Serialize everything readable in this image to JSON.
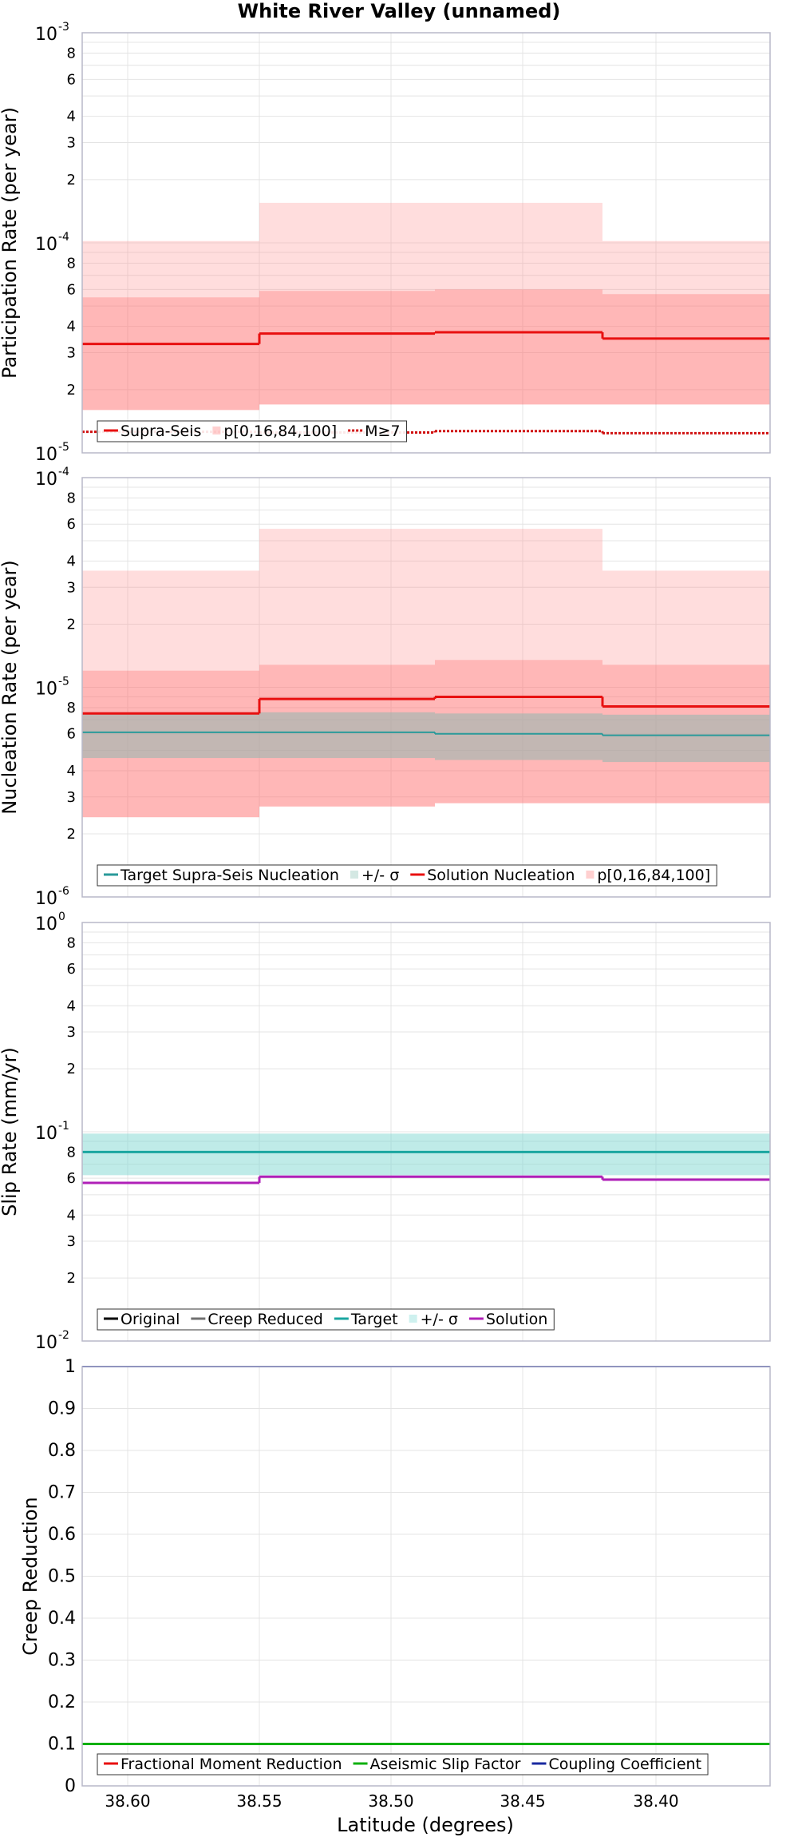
{
  "title": "White River Valley (unnamed)",
  "xlabel": "Latitude (degrees)",
  "x_ticks": [
    "38.60",
    "38.55",
    "38.50",
    "38.45",
    "38.40"
  ],
  "chart_data": [
    {
      "type": "line",
      "panel": "participation",
      "ylabel": "Participation Rate (per year)",
      "yscale": "log",
      "ylim": [
        1e-05,
        0.001
      ],
      "x_bins": [
        [
          38.6,
          38.55
        ],
        [
          38.55,
          38.52
        ],
        [
          38.52,
          38.45
        ],
        [
          38.45,
          38.4
        ]
      ],
      "series": [
        {
          "name": "Supra-Seis",
          "values": [
            3.3e-05,
            3.7e-05,
            3.75e-05,
            3.5e-05
          ],
          "color": "#e81010"
        },
        {
          "name": "p[0,16,84,100]",
          "p0": [
            1.6e-05,
            1.7e-05,
            1.7e-05,
            1.7e-05
          ],
          "p16": [
            1.6e-05,
            1.7e-05,
            1.7e-05,
            1.7e-05
          ],
          "p84": [
            5.5e-05,
            5.9e-05,
            6e-05,
            5.7e-05
          ],
          "p100": [
            0.000102,
            0.000155,
            0.000155,
            0.000102
          ],
          "color": "#ffb0b0"
        },
        {
          "name": "M≥7",
          "values": [
            1.26e-05,
            1.25e-05,
            1.27e-05,
            1.24e-05
          ],
          "color": "#d01010"
        }
      ]
    },
    {
      "type": "line",
      "panel": "nucleation",
      "ylabel": "Nucleation Rate (per year)",
      "yscale": "log",
      "ylim": [
        1e-06,
        0.0001
      ],
      "x_bins": [
        [
          38.6,
          38.55
        ],
        [
          38.55,
          38.52
        ],
        [
          38.52,
          38.45
        ],
        [
          38.45,
          38.4
        ]
      ],
      "series": [
        {
          "name": "Target Supra-Seis Nucleation",
          "values": [
            6.1e-06,
            6.1e-06,
            6e-06,
            5.9e-06
          ],
          "color": "#2a9a9a"
        },
        {
          "name": "+/- σ",
          "lower": [
            4.6e-06,
            4.6e-06,
            4.5e-06,
            4.4e-06
          ],
          "upper": [
            7.6e-06,
            7.6e-06,
            7.5e-06,
            7.4e-06
          ],
          "color": "#b8d8d0"
        },
        {
          "name": "Solution Nucleation",
          "values": [
            7.5e-06,
            8.8e-06,
            9e-06,
            8.1e-06
          ],
          "color": "#e81010"
        },
        {
          "name": "p[0,16,84,100]",
          "p0": [
            2.4e-06,
            2.7e-06,
            2.8e-06,
            2.8e-06
          ],
          "p16": [
            2.4e-06,
            2.7e-06,
            2.8e-06,
            2.8e-06
          ],
          "p84": [
            1.2e-05,
            1.28e-05,
            1.35e-05,
            1.28e-05
          ],
          "p100": [
            3.6e-05,
            5.7e-05,
            5.7e-05,
            3.6e-05
          ],
          "color": "#ffb0b0"
        }
      ]
    },
    {
      "type": "line",
      "panel": "slip",
      "ylabel": "Slip Rate (mm/yr)",
      "yscale": "log",
      "ylim": [
        0.01,
        1
      ],
      "x_bins": [
        [
          38.6,
          38.55
        ],
        [
          38.55,
          38.52
        ],
        [
          38.52,
          38.45
        ],
        [
          38.45,
          38.4
        ]
      ],
      "series": [
        {
          "name": "Original",
          "values": [],
          "color": "#000000"
        },
        {
          "name": "Creep Reduced",
          "values": [],
          "color": "#707070"
        },
        {
          "name": "Target",
          "values": [
            0.08,
            0.08,
            0.08,
            0.08
          ],
          "color": "#1aa6a0"
        },
        {
          "name": "+/- σ",
          "lower": [
            0.062,
            0.062,
            0.062,
            0.062
          ],
          "upper": [
            0.098,
            0.098,
            0.098,
            0.098
          ],
          "color": "#aee8e4"
        },
        {
          "name": "Solution",
          "values": [
            0.057,
            0.061,
            0.061,
            0.059
          ],
          "color": "#b020b8"
        }
      ]
    },
    {
      "type": "line",
      "panel": "creep",
      "ylabel": "Creep Reduction",
      "yscale": "linear",
      "ylim": [
        0,
        1
      ],
      "y_ticks": [
        "0",
        "0.1",
        "0.2",
        "0.3",
        "0.4",
        "0.5",
        "0.6",
        "0.7",
        "0.8",
        "0.9",
        "1"
      ],
      "x_bins": [
        [
          38.6,
          38.55
        ],
        [
          38.55,
          38.52
        ],
        [
          38.52,
          38.45
        ],
        [
          38.45,
          38.4
        ]
      ],
      "series": [
        {
          "name": "Fractional Moment Reduction",
          "values": [
            0,
            0,
            0,
            0
          ],
          "color": "#e81010"
        },
        {
          "name": "Aseismic Slip Factor",
          "values": [
            0.1,
            0.1,
            0.1,
            0.1
          ],
          "color": "#10b010"
        },
        {
          "name": "Coupling Coefficient",
          "values": [
            1,
            1,
            1,
            1
          ],
          "color": "#1a2aa0"
        }
      ]
    }
  ]
}
